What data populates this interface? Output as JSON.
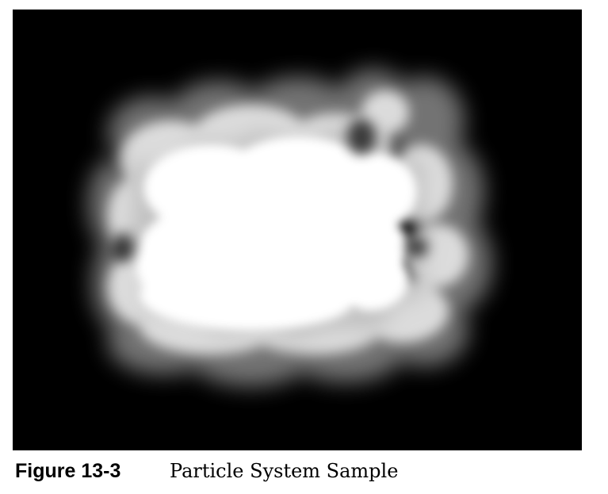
{
  "figure": {
    "number": "Figure 13-3",
    "title": "Particle System Sample",
    "background_color": "#000000",
    "smoke_color": "#ffffff"
  }
}
